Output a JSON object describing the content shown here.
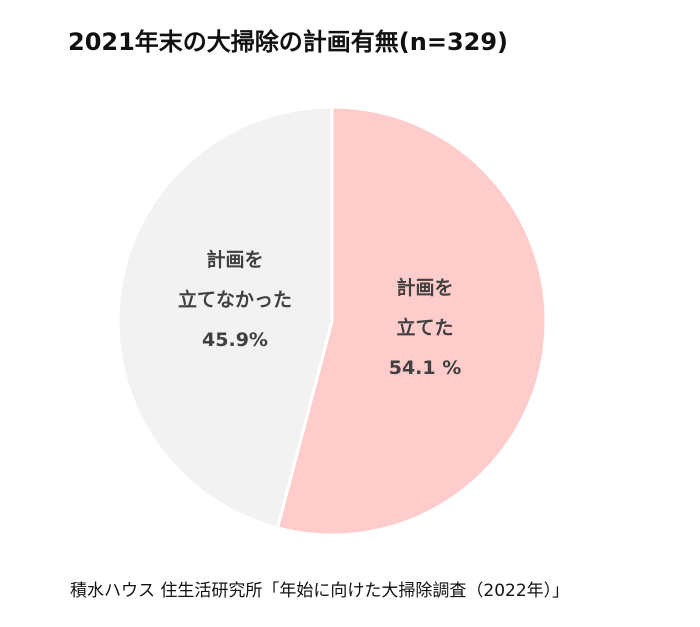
{
  "chart_data": {
    "type": "pie",
    "title": "2021年末の大掃除の計画有無(n=329)",
    "slices": [
      {
        "label_line1": "計画を",
        "label_line2": "立てた",
        "value": 54.1,
        "value_label": "54.1 %",
        "color": "#FFCCCC"
      },
      {
        "label_line1": "計画を",
        "label_line2": "立てなかった",
        "value": 45.9,
        "value_label": "45.9%",
        "color": "#F2F2F2"
      }
    ],
    "start_angle": "top",
    "direction": "clockwise",
    "legend": "none"
  },
  "source": "積水ハウス 住生活研究所「年始に向けた大掃除調査（2022年）」"
}
